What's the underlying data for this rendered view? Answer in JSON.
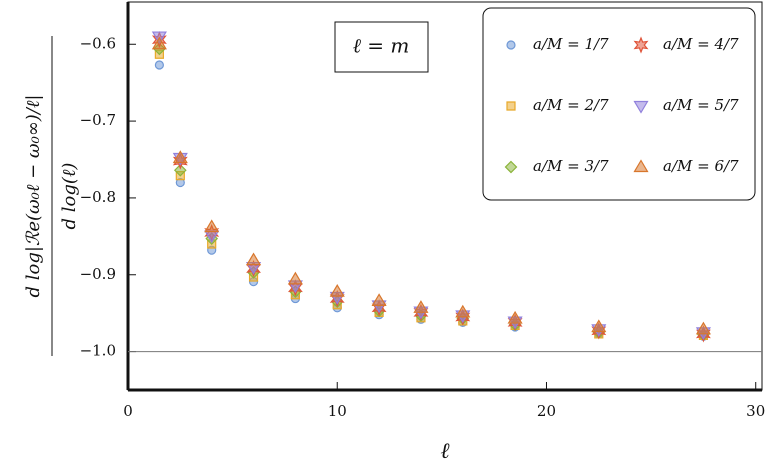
{
  "chart_data": {
    "type": "scatter",
    "annotation": "ℓ = m",
    "xlabel": "ℓ",
    "ylabel": [
      "d log|ℛe(ω₀ℓ − ω₀∞)/ℓ|",
      "d log(ℓ)"
    ],
    "xlim": [
      0,
      30.3
    ],
    "ylim": [
      -1.05,
      -0.545
    ],
    "xticks": [
      0,
      10,
      20,
      30
    ],
    "yticks": [
      {
        "value": -1.0,
        "label": "−1.0"
      },
      {
        "value": -0.9,
        "label": "−0.9"
      },
      {
        "value": -0.8,
        "label": "−0.8"
      },
      {
        "value": -0.7,
        "label": "−0.7"
      },
      {
        "value": -0.6,
        "label": "−0.6"
      }
    ],
    "hline": -1.0,
    "legend": "upper right",
    "x": [
      1.5,
      2.5,
      4,
      6,
      8,
      10,
      12,
      14,
      16,
      18.5,
      22.5,
      27.5
    ],
    "series": [
      {
        "name": "a/M = 1/7",
        "marker": "circle",
        "color": "#6f98d6",
        "values": [
          -0.627,
          -0.78,
          -0.868,
          -0.909,
          -0.931,
          -0.943,
          -0.952,
          -0.958,
          -0.962,
          -0.968,
          -0.977,
          -0.98
        ]
      },
      {
        "name": "a/M = 2/7",
        "marker": "square",
        "color": "#e8a92a",
        "values": [
          -0.613,
          -0.771,
          -0.86,
          -0.903,
          -0.926,
          -0.939,
          -0.949,
          -0.956,
          -0.96,
          -0.966,
          -0.977,
          -0.979
        ]
      },
      {
        "name": "a/M = 3/7",
        "marker": "diamond",
        "color": "#8bb43a",
        "values": [
          -0.606,
          -0.764,
          -0.853,
          -0.897,
          -0.922,
          -0.935,
          -0.947,
          -0.953,
          -0.957,
          -0.965,
          -0.975,
          -0.978
        ]
      },
      {
        "name": "a/M = 4/7",
        "marker": "star",
        "color": "#e0553a",
        "values": [
          -0.594,
          -0.752,
          -0.845,
          -0.892,
          -0.917,
          -0.931,
          -0.943,
          -0.949,
          -0.955,
          -0.962,
          -0.973,
          -0.977
        ]
      },
      {
        "name": "a/M = 5/7",
        "marker": "triangle-down",
        "color": "#9080dc",
        "values": [
          -0.59,
          -0.748,
          -0.849,
          -0.89,
          -0.914,
          -0.929,
          -0.94,
          -0.948,
          -0.953,
          -0.961,
          -0.971,
          -0.975
        ]
      },
      {
        "name": "a/M = 6/7",
        "marker": "triangle-up",
        "color": "#d8762c",
        "values": [
          -0.6,
          -0.748,
          -0.838,
          -0.881,
          -0.906,
          -0.922,
          -0.934,
          -0.943,
          -0.949,
          -0.957,
          -0.968,
          -0.971
        ]
      }
    ]
  }
}
